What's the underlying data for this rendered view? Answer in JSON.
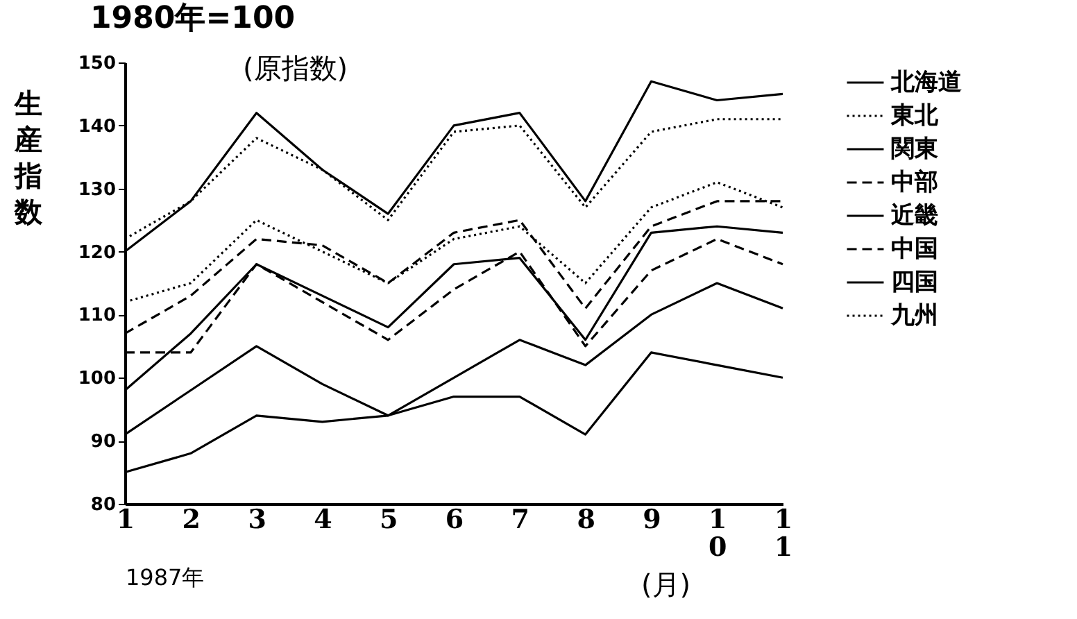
{
  "chart_data": {
    "type": "line",
    "title": "1980年=100",
    "ylabel": "生産指数",
    "xlabel": "1987年",
    "annotations": [
      "(原指数)",
      "(月)"
    ],
    "categories": [
      "1",
      "2",
      "3",
      "4",
      "5",
      "6",
      "7",
      "8",
      "9",
      "10",
      "11"
    ],
    "ylim": [
      80,
      150
    ],
    "yticks": [
      80,
      90,
      100,
      110,
      120,
      130,
      140,
      150
    ],
    "grid": false,
    "legend": "top right",
    "marker": "none",
    "series": [
      {
        "name": "北海道",
        "color": "#000000",
        "line_style": "solid",
        "values": [
          85,
          88,
          94,
          93,
          94,
          97,
          97,
          91,
          104,
          102,
          100
        ]
      },
      {
        "name": "東北",
        "color": "#000000",
        "line_style": "dotted",
        "values": [
          122,
          128,
          138,
          133,
          125,
          139,
          140,
          127,
          139,
          141,
          141
        ]
      },
      {
        "name": "関東",
        "color": "#000000",
        "line_style": "solid",
        "values": [
          120,
          128,
          142,
          133,
          126,
          140,
          142,
          128,
          147,
          144,
          145
        ]
      },
      {
        "name": "中部",
        "color": "#000000",
        "line_style": "dashed",
        "values": [
          107,
          113,
          122,
          121,
          115,
          123,
          125,
          111,
          124,
          128,
          128
        ]
      },
      {
        "name": "近畿",
        "color": "#000000",
        "line_style": "solid",
        "values": [
          98,
          107,
          118,
          113,
          108,
          118,
          119,
          106,
          123,
          124,
          123
        ]
      },
      {
        "name": "中国",
        "color": "#000000",
        "line_style": "dashed",
        "values": [
          104,
          104,
          118,
          112,
          106,
          114,
          120,
          105,
          117,
          122,
          118
        ]
      },
      {
        "name": "四国",
        "color": "#000000",
        "line_style": "solid",
        "values": [
          91,
          98,
          105,
          99,
          94,
          100,
          106,
          102,
          110,
          115,
          111
        ]
      },
      {
        "name": "九州",
        "color": "#000000",
        "line_style": "dotted",
        "values": [
          112,
          115,
          125,
          120,
          115,
          122,
          124,
          115,
          127,
          131,
          127
        ]
      }
    ]
  }
}
